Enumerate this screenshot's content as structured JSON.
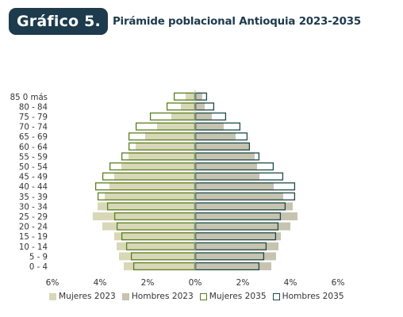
{
  "header": {
    "badge": "Gráfico 5.",
    "title": "Pirámide poblacional Antioquia 2023-2035"
  },
  "colors": {
    "mujeres_2023": "#d8d8b8",
    "hombres_2023": "#c7c3b1",
    "mujeres_2035_outline": "#5a7f1e",
    "hombres_2035_outline": "#1d4b46",
    "badge_bg": "#1d3b4d",
    "axis": "#bbbbbb"
  },
  "chart_data": {
    "type": "bar",
    "orientation": "horizontal-pyramid",
    "categories": [
      "0 - 4",
      "5 - 9",
      "10 - 14",
      "15 - 19",
      "20 - 24",
      "25 - 29",
      "30 - 34",
      "35 - 39",
      "40 - 44",
      "45 - 49",
      "50 - 54",
      "55 - 59",
      "60 - 64",
      "65 - 69",
      "70 - 74",
      "75 - 79",
      "80 - 84",
      "85 0 más"
    ],
    "x_ticks": [
      "6%",
      "4%",
      "2%",
      "0%",
      "2%",
      "4%",
      "6%"
    ],
    "xlim": [
      -6,
      6
    ],
    "series": [
      {
        "name": "Mujeres 2023",
        "side": "left",
        "style": "filled",
        "values": [
          3.0,
          3.2,
          3.3,
          3.4,
          3.9,
          4.3,
          4.1,
          3.8,
          3.6,
          3.4,
          3.1,
          2.8,
          2.5,
          2.1,
          1.6,
          1.0,
          0.6,
          0.4
        ]
      },
      {
        "name": "Hombres 2023",
        "side": "right",
        "style": "filled",
        "values": [
          3.2,
          3.4,
          3.5,
          3.6,
          4.0,
          4.3,
          4.1,
          3.7,
          3.3,
          2.7,
          2.6,
          2.5,
          2.3,
          1.7,
          1.2,
          0.7,
          0.4,
          0.3
        ]
      },
      {
        "name": "Mujeres 2035",
        "side": "left",
        "style": "outline",
        "values": [
          2.6,
          2.7,
          2.9,
          3.1,
          3.3,
          3.4,
          3.7,
          4.1,
          4.2,
          3.9,
          3.6,
          3.1,
          2.8,
          2.8,
          2.5,
          1.9,
          1.2,
          0.9
        ]
      },
      {
        "name": "Hombres 2035",
        "side": "right",
        "style": "outline",
        "values": [
          2.7,
          2.9,
          3.0,
          3.4,
          3.5,
          3.6,
          3.8,
          4.2,
          4.2,
          3.7,
          3.3,
          2.7,
          2.3,
          2.2,
          1.9,
          1.3,
          0.8,
          0.5
        ]
      }
    ],
    "legend": [
      "Mujeres 2023",
      "Hombres 2023",
      "Mujeres 2035",
      "Hombres 2035"
    ],
    "legend_position": "bottom",
    "grid": false
  }
}
